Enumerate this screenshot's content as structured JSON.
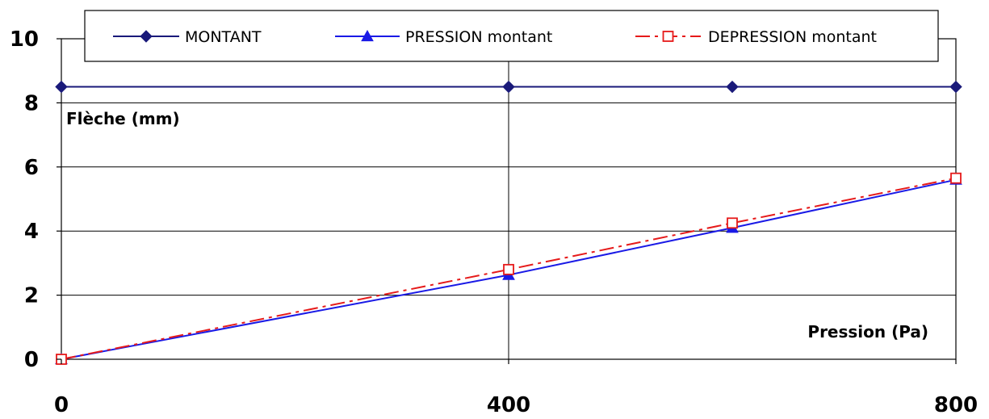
{
  "chart_data": {
    "type": "line",
    "xlabel": "Pression (Pa)",
    "ylabel": "Flèche (mm)",
    "xlim": [
      0,
      800
    ],
    "ylim": [
      0,
      10
    ],
    "x_ticks": [
      "0",
      "400",
      "800"
    ],
    "x_tick_values": [
      0,
      400,
      800
    ],
    "y_ticks": [
      "0",
      "2",
      "4",
      "6",
      "8",
      "10"
    ],
    "y_tick_values": [
      0,
      2,
      4,
      6,
      8,
      10
    ],
    "grid": true,
    "legend_position": "top",
    "series": [
      {
        "name": "MONTANT",
        "color": "#1a1a7a",
        "marker": "diamond",
        "line": "solid",
        "x": [
          0,
          400,
          600,
          800
        ],
        "y": [
          8.5,
          8.5,
          8.5,
          8.5
        ]
      },
      {
        "name": "PRESSION montant",
        "color": "#1a1ae6",
        "marker": "triangle",
        "line": "solid",
        "x": [
          0,
          400,
          600,
          800
        ],
        "y": [
          0,
          2.63,
          4.1,
          5.6
        ]
      },
      {
        "name": "DEPRESSION montant",
        "color": "#e61a1a",
        "marker": "square-open",
        "line": "dashdot",
        "x": [
          0,
          400,
          600,
          800
        ],
        "y": [
          0,
          2.8,
          4.25,
          5.65
        ]
      }
    ]
  }
}
